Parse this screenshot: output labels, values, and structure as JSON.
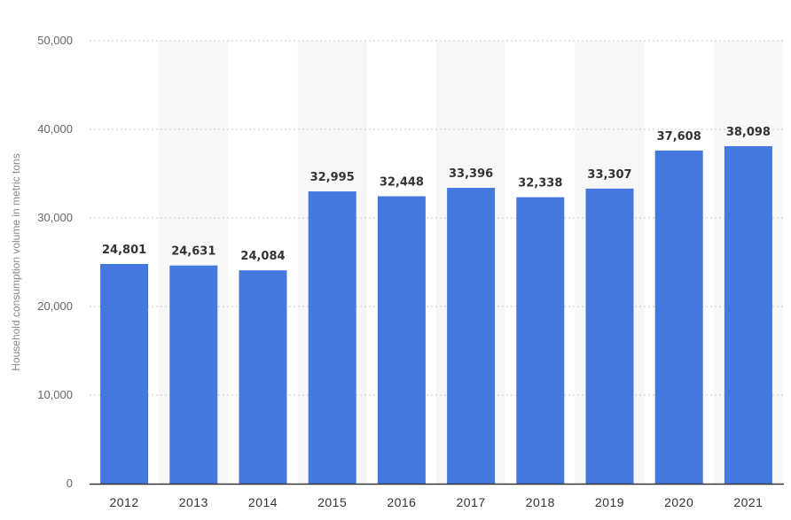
{
  "chart_data": {
    "type": "bar",
    "categories": [
      "2012",
      "2013",
      "2014",
      "2015",
      "2016",
      "2017",
      "2018",
      "2019",
      "2020",
      "2021"
    ],
    "values": [
      24801,
      24631,
      24084,
      32995,
      32448,
      33396,
      32338,
      33307,
      37608,
      38098
    ],
    "value_labels": [
      "24,801",
      "24,631",
      "24,084",
      "32,995",
      "32,448",
      "33,396",
      "32,338",
      "33,307",
      "37,608",
      "38,098"
    ],
    "title": "",
    "xlabel": "",
    "ylabel": "Household consumption volume in metric tons",
    "ylim": [
      0,
      50000
    ],
    "yticks": [
      0,
      10000,
      20000,
      30000,
      40000,
      50000
    ],
    "ytick_labels": [
      "0",
      "10,000",
      "20,000",
      "30,000",
      "40,000",
      "50,000"
    ],
    "grid": true,
    "legend": "none",
    "colors": {
      "bar": "#4478df",
      "band": "#f7f7f7",
      "grid": "#c8c8c8",
      "axis": "#333333"
    }
  }
}
